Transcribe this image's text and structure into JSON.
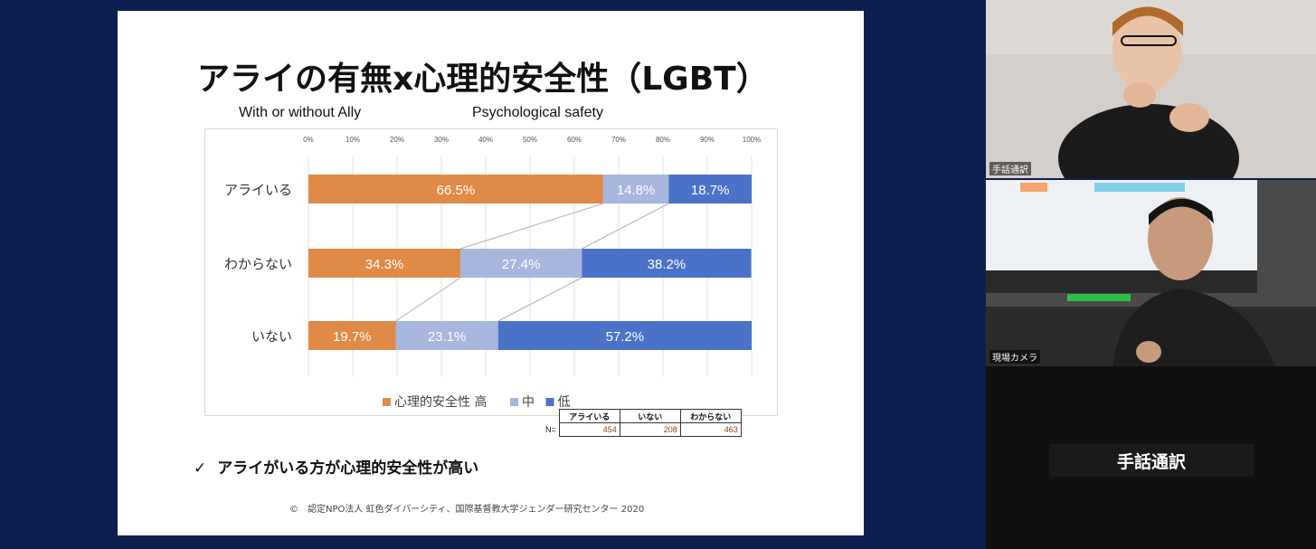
{
  "slide": {
    "title": "アライの有無x心理的安全性（LGBT）",
    "subtitle_left": "With or without Ally",
    "subtitle_right": "Psychological safety",
    "conclusion": "アライがいる方が心理的安全性が高い",
    "check_mark": "✓",
    "credit": "©　認定NPO法人 虹色ダイバーシティ、国際基督教大学ジェンダー研究センター 2020"
  },
  "chart_data": {
    "type": "bar",
    "orientation": "horizontal-stacked-percent",
    "categories": [
      "アライいる",
      "わからない",
      "いない"
    ],
    "x_ticks": [
      "0%",
      "10%",
      "20%",
      "30%",
      "40%",
      "50%",
      "60%",
      "70%",
      "80%",
      "90%",
      "100%"
    ],
    "xlim": [
      0,
      100
    ],
    "series": [
      {
        "name": "心理的安全性 高",
        "color": "#e08a47",
        "values": [
          66.5,
          34.3,
          19.7
        ],
        "labels": [
          "66.5%",
          "34.3%",
          "19.7%"
        ]
      },
      {
        "name": "中",
        "color": "#a7b6dd",
        "values": [
          14.8,
          27.4,
          23.1
        ],
        "labels": [
          "14.8%",
          "27.4%",
          "23.1%"
        ]
      },
      {
        "name": "低",
        "color": "#4a72c8",
        "values": [
          18.7,
          38.2,
          57.2
        ],
        "labels": [
          "18.7%",
          "38.2%",
          "57.2%"
        ]
      }
    ],
    "connector_lines": true,
    "legend_position": "bottom",
    "grid": true
  },
  "n_table": {
    "row_label": "N=",
    "headers": [
      "アライいる",
      "いない",
      "わからない"
    ],
    "values": [
      "454",
      "208",
      "463"
    ]
  },
  "video": {
    "interpreter_label": "手話通訳",
    "camera_label": "現場カメラ",
    "text_tile": "手話通訳"
  },
  "colors": {
    "background": "#0c1f4e",
    "high": "#e08a47",
    "mid": "#a7b6dd",
    "low": "#4a72c8"
  }
}
